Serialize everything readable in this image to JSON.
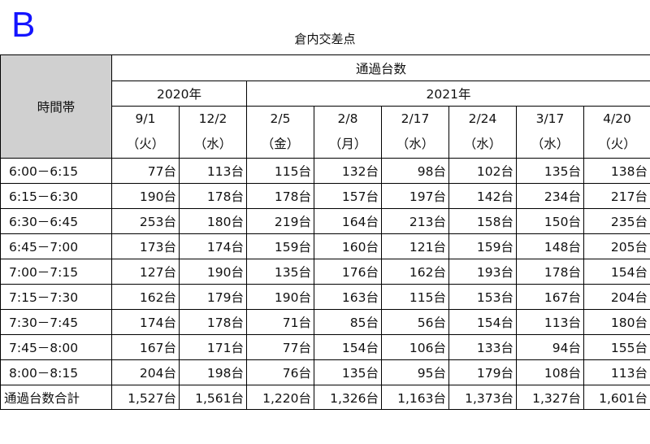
{
  "marker": "B",
  "title": "倉内交差点",
  "header": {
    "row_label": "時間帯",
    "group": "通過台数",
    "years": [
      "2020年",
      "2021年"
    ],
    "dates": [
      {
        "date": "9/1",
        "day": "（火）"
      },
      {
        "date": "12/2",
        "day": "（水）"
      },
      {
        "date": "2/5",
        "day": "（金）"
      },
      {
        "date": "2/8",
        "day": "（月）"
      },
      {
        "date": "2/17",
        "day": "（水）"
      },
      {
        "date": "2/24",
        "day": "（水）"
      },
      {
        "date": "3/17",
        "day": "（水）"
      },
      {
        "date": "4/20",
        "day": "（火）"
      }
    ]
  },
  "rows": [
    {
      "time": "6:00－6:15",
      "values": [
        "77台",
        "113台",
        "115台",
        "132台",
        "98台",
        "102台",
        "135台",
        "138台"
      ]
    },
    {
      "time": "6:15－6:30",
      "values": [
        "190台",
        "178台",
        "178台",
        "157台",
        "197台",
        "142台",
        "234台",
        "217台"
      ]
    },
    {
      "time": "6:30－6:45",
      "values": [
        "253台",
        "180台",
        "219台",
        "164台",
        "213台",
        "158台",
        "150台",
        "235台"
      ]
    },
    {
      "time": "6:45－7:00",
      "values": [
        "173台",
        "174台",
        "159台",
        "160台",
        "121台",
        "159台",
        "148台",
        "205台"
      ]
    },
    {
      "time": "7:00－7:15",
      "values": [
        "127台",
        "190台",
        "135台",
        "176台",
        "162台",
        "193台",
        "178台",
        "154台"
      ]
    },
    {
      "time": "7:15－7:30",
      "values": [
        "162台",
        "179台",
        "190台",
        "163台",
        "115台",
        "153台",
        "167台",
        "204台"
      ]
    },
    {
      "time": "7:30－7:45",
      "values": [
        "174台",
        "178台",
        "71台",
        "85台",
        "56台",
        "154台",
        "113台",
        "180台"
      ]
    },
    {
      "time": "7:45－8:00",
      "values": [
        "167台",
        "171台",
        "77台",
        "154台",
        "106台",
        "133台",
        "94台",
        "155台"
      ]
    },
    {
      "time": "8:00－8:15",
      "values": [
        "204台",
        "198台",
        "76台",
        "135台",
        "95台",
        "179台",
        "108台",
        "113台"
      ]
    }
  ],
  "total": {
    "label": "通過台数合計",
    "values": [
      "1,527台",
      "1,561台",
      "1,220台",
      "1,326台",
      "1,163台",
      "1,373台",
      "1,327台",
      "1,601台"
    ]
  }
}
